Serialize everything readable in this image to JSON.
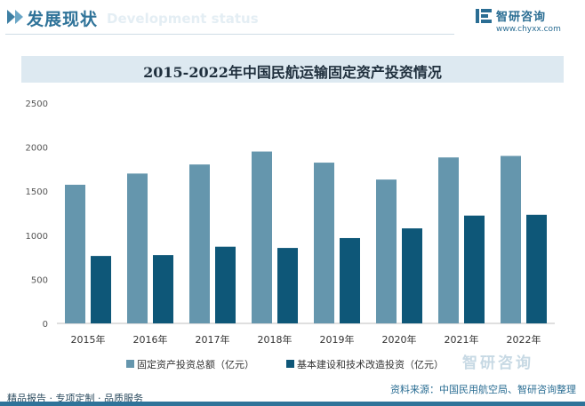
{
  "header": {
    "title": "发展现状",
    "subtitle": "Development status"
  },
  "logo": {
    "name": "智研咨询",
    "url": "www.chyxx.com"
  },
  "watermark": {
    "brand": "智研咨询"
  },
  "footer": {
    "left_text": "精品报告 · 专项定制 · 品质服务",
    "source": "资料来源：中国民用航空局、智研咨询整理"
  },
  "colors": {
    "series1": "#6596ad",
    "series2": "#0e5778",
    "accent": "#2f7399"
  },
  "chart_data": {
    "type": "bar",
    "title": "2015-2022年中国民航运输固定资产投资情况",
    "categories": [
      "2015年",
      "2016年",
      "2017年",
      "2018年",
      "2019年",
      "2020年",
      "2021年",
      "2022年"
    ],
    "series": [
      {
        "name": "固定资产投资总额（亿元）",
        "values": [
          1573,
          1700,
          1803,
          1950,
          1824,
          1632,
          1883,
          1900
        ]
      },
      {
        "name": "基本建设和技术改造投资（亿元）",
        "values": [
          765,
          775,
          870,
          856,
          968,
          1078,
          1223,
          1232
        ]
      }
    ],
    "yticks": [
      "0",
      "500",
      "1000",
      "1500",
      "2000",
      "2500"
    ],
    "ylim": [
      0,
      2500
    ],
    "grid": false,
    "legend": "bottom"
  }
}
